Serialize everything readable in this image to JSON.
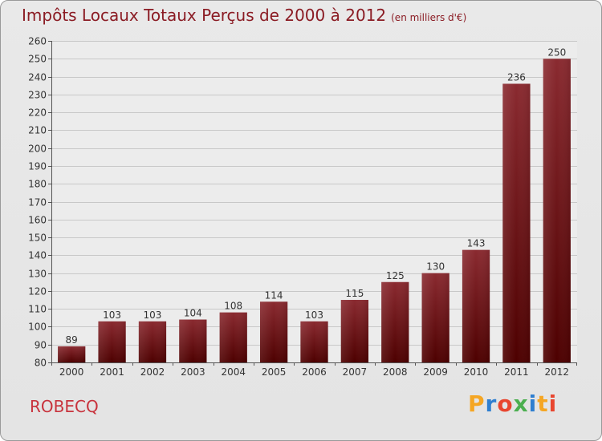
{
  "header": {
    "title": "Impôts Locaux Totaux Perçus de 2000 à 2012",
    "unit": "(en milliers d'€)"
  },
  "footer": {
    "commune": "ROBECQ",
    "logo_text": "Proxiti",
    "logo_colors": [
      "#f5a623",
      "#2f7fd0",
      "#e8462f",
      "#4caf50",
      "#2f7fd0",
      "#f5a623",
      "#e8462f"
    ]
  },
  "colors": {
    "bar_top": "#8a2a30",
    "bar_bottom": "#4d0000",
    "title": "#8b1c24",
    "grid": "#c8c8c8"
  },
  "chart_data": {
    "type": "bar",
    "categories": [
      "2000",
      "2001",
      "2002",
      "2003",
      "2004",
      "2005",
      "2006",
      "2007",
      "2008",
      "2009",
      "2010",
      "2011",
      "2012"
    ],
    "values": [
      89,
      103,
      103,
      104,
      108,
      114,
      103,
      115,
      125,
      130,
      143,
      236,
      250
    ],
    "ylim": [
      80,
      260
    ],
    "yticks": [
      80,
      90,
      100,
      110,
      120,
      130,
      140,
      150,
      160,
      170,
      180,
      190,
      200,
      210,
      220,
      230,
      240,
      250,
      260
    ],
    "grid": true,
    "data_labels": true
  }
}
